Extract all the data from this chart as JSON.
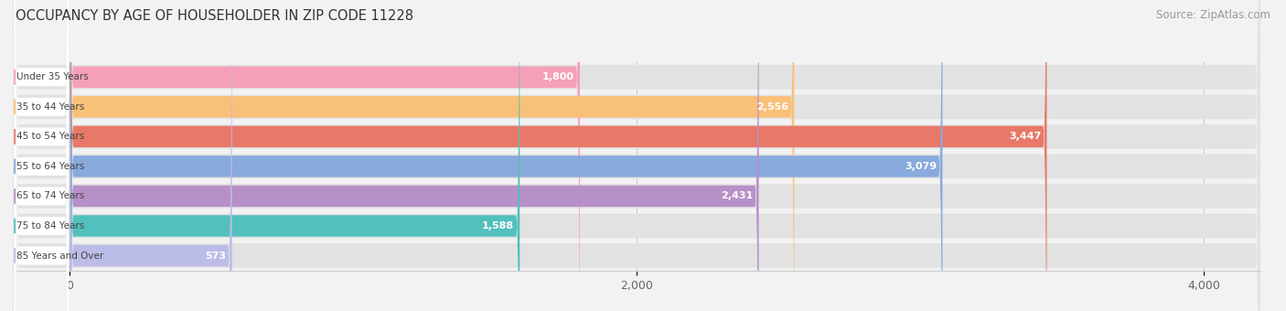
{
  "title": "OCCUPANCY BY AGE OF HOUSEHOLDER IN ZIP CODE 11228",
  "source": "Source: ZipAtlas.com",
  "categories": [
    "Under 35 Years",
    "35 to 44 Years",
    "45 to 54 Years",
    "55 to 64 Years",
    "65 to 74 Years",
    "75 to 84 Years",
    "85 Years and Over"
  ],
  "values": [
    1800,
    2556,
    3447,
    3079,
    2431,
    1588,
    573
  ],
  "bar_colors": [
    "#F5A0B8",
    "#F9C078",
    "#E87868",
    "#88AADC",
    "#B890C8",
    "#52C0BC",
    "#BCBCE8"
  ],
  "bg_color": "#f2f2f2",
  "bar_bg_color": "#e2e2e2",
  "xlim": [
    -200,
    4200
  ],
  "data_xlim": [
    0,
    4000
  ],
  "xticks": [
    0,
    2000,
    4000
  ],
  "title_fontsize": 10.5,
  "source_fontsize": 8.5,
  "figsize": [
    14.06,
    3.4
  ],
  "dpi": 100
}
